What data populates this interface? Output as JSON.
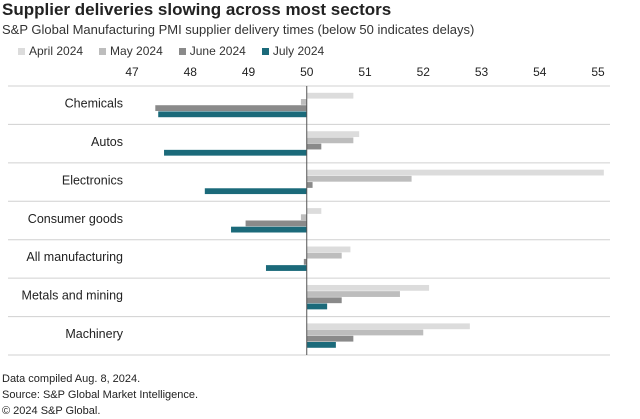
{
  "title": "Supplier deliveries slowing across most sectors",
  "subtitle": "S&P Global Manufacturing PMI supplier delivery times (below 50 indicates delays)",
  "footer": {
    "line1": "Data compiled Aug. 8, 2024.",
    "line2": "Source: S&P Global Market Intelligence.",
    "line3": "© 2024 S&P Global."
  },
  "chart_data": {
    "type": "bar",
    "orientation": "horizontal",
    "title": "Supplier deliveries slowing across most sectors",
    "subtitle": "S&P Global Manufacturing PMI supplier delivery times (below 50 indicates delays)",
    "categories": [
      "Chemicals",
      "Autos",
      "Electronics",
      "Consumer goods",
      "All manufacturing",
      "Metals and mining",
      "Machinery"
    ],
    "series": [
      {
        "name": "April 2024",
        "color": "#dcdcdc",
        "values": [
          50.8,
          50.9,
          55.1,
          50.25,
          50.75,
          52.1,
          52.8
        ]
      },
      {
        "name": "May 2024",
        "color": "#bdbdbd",
        "values": [
          49.9,
          50.8,
          51.8,
          49.9,
          50.6,
          51.6,
          52.0
        ]
      },
      {
        "name": "June 2024",
        "color": "#8a8a8a",
        "values": [
          47.4,
          50.25,
          50.1,
          48.95,
          49.95,
          50.6,
          50.8
        ]
      },
      {
        "name": "July 2024",
        "color": "#1b6a7a",
        "values": [
          47.45,
          47.55,
          48.25,
          48.7,
          49.3,
          50.35,
          50.5
        ]
      }
    ],
    "baseline": 50,
    "xlim": [
      47,
      55
    ],
    "xticks": [
      47,
      48,
      49,
      50,
      51,
      52,
      53,
      54,
      55
    ],
    "grid": "horizontal separators between categories",
    "legend_position": "top"
  }
}
